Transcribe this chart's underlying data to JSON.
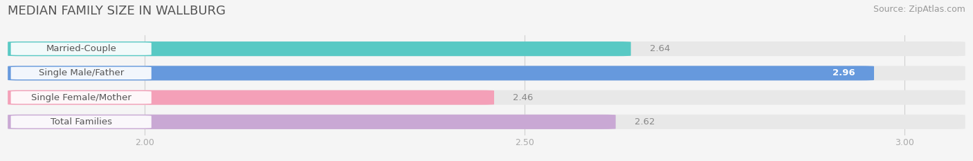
{
  "title": "MEDIAN FAMILY SIZE IN WALLBURG",
  "source": "Source: ZipAtlas.com",
  "categories": [
    "Married-Couple",
    "Single Male/Father",
    "Single Female/Mother",
    "Total Families"
  ],
  "values": [
    2.64,
    2.96,
    2.46,
    2.62
  ],
  "bar_colors": [
    "#58c9c4",
    "#6699dd",
    "#f4a0b8",
    "#c9a8d4"
  ],
  "xlim": [
    1.82,
    3.08
  ],
  "xticks": [
    2.0,
    2.5,
    3.0
  ],
  "background_color": "#f5f5f5",
  "bar_bg_color": "#e8e8e8",
  "label_bg_color": "#ffffff",
  "value_label_color_inside": "#ffffff",
  "value_label_color_outside": "#888888",
  "title_fontsize": 13,
  "source_fontsize": 9,
  "label_fontsize": 9.5,
  "value_fontsize": 9.5,
  "tick_fontsize": 9,
  "bar_height": 0.6,
  "bar_gap": 0.25
}
